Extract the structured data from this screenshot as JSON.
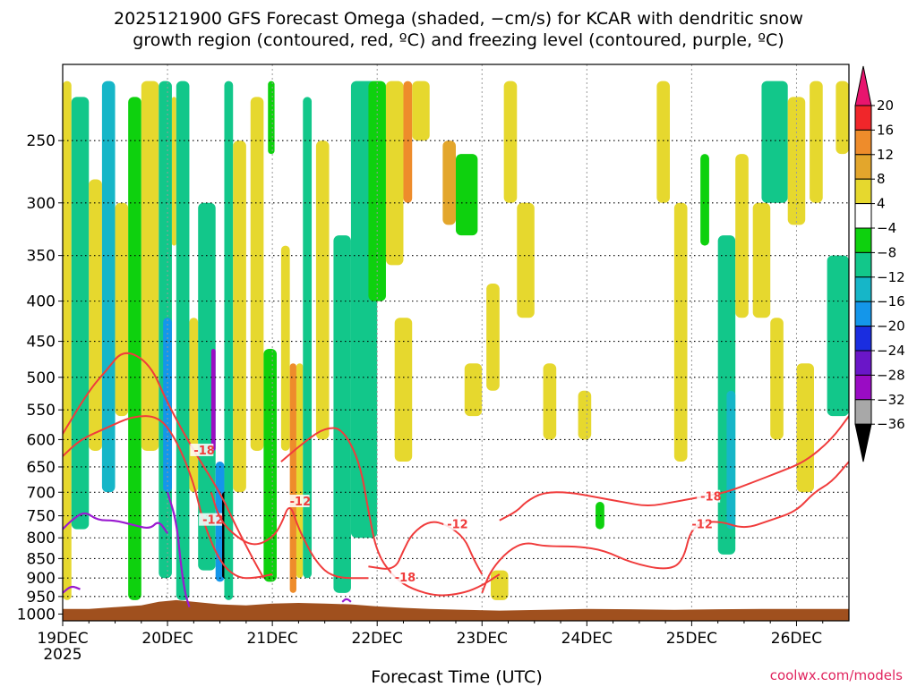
{
  "chart_data": {
    "type": "heatmap",
    "title_line1": "2025121900 GFS Forecast Omega (shaded, −cm/s) for KCAR with dendritic snow",
    "title_line2": "growth region (contoured, red, ºC) and freezing level (contoured, purple, ºC)",
    "xlabel": "Forecast Time (UTC)",
    "ylabel": "",
    "credit": "coolwx.com/models",
    "x_ticks": [
      "19DEC",
      "20DEC",
      "21DEC",
      "22DEC",
      "23DEC",
      "24DEC",
      "25DEC",
      "26DEC"
    ],
    "x_year": "2025",
    "x_range_hours": [
      0,
      180
    ],
    "y_ticks": [
      250,
      300,
      350,
      400,
      450,
      500,
      550,
      600,
      650,
      700,
      750,
      800,
      850,
      900,
      950,
      1000
    ],
    "y_range_hPa": [
      200,
      1020
    ],
    "y_scale": "log",
    "grid": true,
    "colorbar": {
      "labels": [
        "20",
        "16",
        "12",
        "8",
        "4",
        "−4",
        "−8",
        "−12",
        "−16",
        "−20",
        "−24",
        "−28",
        "−32",
        "−36"
      ],
      "bins": [
        {
          "from": 20,
          "to": 24,
          "color": "#e8156e"
        },
        {
          "from": 16,
          "to": 20,
          "color": "#f0262a"
        },
        {
          "from": 12,
          "to": 16,
          "color": "#ee8c2b"
        },
        {
          "from": 8,
          "to": 12,
          "color": "#e3a62c"
        },
        {
          "from": 4,
          "to": 8,
          "color": "#e6d82e"
        },
        {
          "from": -4,
          "to": 4,
          "color": "#ffffff"
        },
        {
          "from": -8,
          "to": -4,
          "color": "#0ed10e"
        },
        {
          "from": -12,
          "to": -8,
          "color": "#12c78a"
        },
        {
          "from": -16,
          "to": -12,
          "color": "#16b6c8"
        },
        {
          "from": -20,
          "to": -16,
          "color": "#1496ea"
        },
        {
          "from": -24,
          "to": -20,
          "color": "#1a2de0"
        },
        {
          "from": -28,
          "to": -24,
          "color": "#6a16c8"
        },
        {
          "from": -32,
          "to": -28,
          "color": "#9a0cc4"
        },
        {
          "from": -36,
          "to": -32,
          "color": "#a8a8a8"
        },
        {
          "from": -40,
          "to": -36,
          "color": "#000000"
        }
      ]
    },
    "shaded_regions": [
      {
        "t0": 0,
        "t1": 2,
        "p0": 210,
        "p1": 960,
        "value": 6
      },
      {
        "t0": 2,
        "t1": 6,
        "p0": 220,
        "p1": 780,
        "value": -10
      },
      {
        "t0": 6,
        "t1": 9,
        "p0": 280,
        "p1": 620,
        "value": 6
      },
      {
        "t0": 9,
        "t1": 12,
        "p0": 210,
        "p1": 700,
        "value": -14
      },
      {
        "t0": 12,
        "t1": 15,
        "p0": 300,
        "p1": 560,
        "value": 6
      },
      {
        "t0": 15,
        "t1": 18,
        "p0": 220,
        "p1": 960,
        "value": -8
      },
      {
        "t0": 18,
        "t1": 22,
        "p0": 210,
        "p1": 620,
        "value": 6
      },
      {
        "t0": 22,
        "t1": 25,
        "p0": 210,
        "p1": 900,
        "value": -10
      },
      {
        "t0": 23,
        "t1": 25,
        "p0": 420,
        "p1": 700,
        "value": -17
      },
      {
        "t0": 25,
        "t1": 26,
        "p0": 220,
        "p1": 340,
        "value": 6
      },
      {
        "t0": 26,
        "t1": 29,
        "p0": 210,
        "p1": 960,
        "value": -9
      },
      {
        "t0": 29,
        "t1": 31,
        "p0": 420,
        "p1": 700,
        "value": 6
      },
      {
        "t0": 31,
        "t1": 35,
        "p0": 300,
        "p1": 880,
        "value": -11
      },
      {
        "t0": 34,
        "t1": 35,
        "p0": 460,
        "p1": 620,
        "value": -30
      },
      {
        "t0": 35,
        "t1": 37,
        "p0": 640,
        "p1": 910,
        "value": -18
      },
      {
        "t0": 36.5,
        "t1": 37.5,
        "p0": 700,
        "p1": 900,
        "value": -37
      },
      {
        "t0": 37,
        "t1": 39,
        "p0": 210,
        "p1": 960,
        "value": -9
      },
      {
        "t0": 39,
        "t1": 42,
        "p0": 250,
        "p1": 700,
        "value": 6
      },
      {
        "t0": 43,
        "t1": 46,
        "p0": 220,
        "p1": 620,
        "value": 6
      },
      {
        "t0": 46,
        "t1": 49,
        "p0": 460,
        "p1": 910,
        "value": -8
      },
      {
        "t0": 47,
        "t1": 48.5,
        "p0": 210,
        "p1": 260,
        "value": -8
      },
      {
        "t0": 50,
        "t1": 52,
        "p0": 340,
        "p1": 620,
        "value": 6
      },
      {
        "t0": 52,
        "t1": 53.5,
        "p0": 480,
        "p1": 940,
        "value": 14
      },
      {
        "t0": 53.5,
        "t1": 55,
        "p0": 480,
        "p1": 900,
        "value": 6
      },
      {
        "t0": 55,
        "t1": 57,
        "p0": 220,
        "p1": 900,
        "value": -9
      },
      {
        "t0": 58,
        "t1": 61,
        "p0": 250,
        "p1": 600,
        "value": 6
      },
      {
        "t0": 62,
        "t1": 66,
        "p0": 330,
        "p1": 940,
        "value": -9
      },
      {
        "t0": 66,
        "t1": 72,
        "p0": 210,
        "p1": 800,
        "value": -12
      },
      {
        "t0": 70,
        "t1": 74,
        "p0": 210,
        "p1": 400,
        "value": -8
      },
      {
        "t0": 74,
        "t1": 78,
        "p0": 210,
        "p1": 360,
        "value": 6
      },
      {
        "t0": 76,
        "t1": 80,
        "p0": 420,
        "p1": 640,
        "value": 6
      },
      {
        "t0": 78,
        "t1": 80,
        "p0": 210,
        "p1": 300,
        "value": 14
      },
      {
        "t0": 80,
        "t1": 84,
        "p0": 210,
        "p1": 250,
        "value": 6
      },
      {
        "t0": 87,
        "t1": 90,
        "p0": 250,
        "p1": 320,
        "value": 10
      },
      {
        "t0": 90,
        "t1": 95,
        "p0": 260,
        "p1": 330,
        "value": -8
      },
      {
        "t0": 92,
        "t1": 96,
        "p0": 480,
        "p1": 560,
        "value": 6
      },
      {
        "t0": 97,
        "t1": 100,
        "p0": 380,
        "p1": 520,
        "value": 6
      },
      {
        "t0": 98,
        "t1": 102,
        "p0": 880,
        "p1": 960,
        "value": 6
      },
      {
        "t0": 101,
        "t1": 104,
        "p0": 210,
        "p1": 300,
        "value": 6
      },
      {
        "t0": 104,
        "t1": 108,
        "p0": 300,
        "p1": 420,
        "value": 6
      },
      {
        "t0": 110,
        "t1": 113,
        "p0": 480,
        "p1": 600,
        "value": 6
      },
      {
        "t0": 118,
        "t1": 121,
        "p0": 520,
        "p1": 600,
        "value": 6
      },
      {
        "t0": 122,
        "t1": 124,
        "p0": 720,
        "p1": 780,
        "value": -8
      },
      {
        "t0": 136,
        "t1": 139,
        "p0": 210,
        "p1": 300,
        "value": 6
      },
      {
        "t0": 140,
        "t1": 143,
        "p0": 300,
        "p1": 640,
        "value": 6
      },
      {
        "t0": 146,
        "t1": 148,
        "p0": 260,
        "p1": 340,
        "value": -8
      },
      {
        "t0": 150,
        "t1": 154,
        "p0": 330,
        "p1": 840,
        "value": -10
      },
      {
        "t0": 152,
        "t1": 154,
        "p0": 520,
        "p1": 780,
        "value": -15
      },
      {
        "t0": 154,
        "t1": 157,
        "p0": 260,
        "p1": 420,
        "value": 6
      },
      {
        "t0": 158,
        "t1": 162,
        "p0": 300,
        "p1": 420,
        "value": 6
      },
      {
        "t0": 160,
        "t1": 166,
        "p0": 210,
        "p1": 300,
        "value": -9
      },
      {
        "t0": 162,
        "t1": 165,
        "p0": 420,
        "p1": 600,
        "value": 6
      },
      {
        "t0": 166,
        "t1": 170,
        "p0": 220,
        "p1": 320,
        "value": 6
      },
      {
        "t0": 168,
        "t1": 172,
        "p0": 480,
        "p1": 700,
        "value": 6
      },
      {
        "t0": 171,
        "t1": 174,
        "p0": 210,
        "p1": 300,
        "value": 6
      },
      {
        "t0": 175,
        "t1": 180,
        "p0": 350,
        "p1": 560,
        "value": -9
      },
      {
        "t0": 177,
        "t1": 180,
        "p0": 210,
        "p1": 260,
        "value": 6
      }
    ],
    "dendritic_contours": [
      {
        "label": "-18",
        "points": [
          [
            0,
            590
          ],
          [
            6,
            520
          ],
          [
            10,
            490
          ],
          [
            14,
            460
          ],
          [
            20,
            480
          ],
          [
            24,
            540
          ],
          [
            30,
            620
          ],
          [
            36,
            700
          ],
          [
            40,
            780
          ],
          [
            44,
            860
          ],
          [
            46,
            900
          ]
        ]
      },
      {
        "label": "-12",
        "points": [
          [
            0,
            630
          ],
          [
            4,
            600
          ],
          [
            10,
            580
          ],
          [
            16,
            560
          ],
          [
            22,
            560
          ],
          [
            26,
            600
          ],
          [
            30,
            680
          ],
          [
            32,
            760
          ],
          [
            36,
            860
          ],
          [
            40,
            900
          ],
          [
            44,
            900
          ],
          [
            48,
            890
          ]
        ]
      },
      {
        "label": "-12",
        "points": [
          [
            34,
            700
          ],
          [
            36,
            760
          ],
          [
            40,
            800
          ],
          [
            44,
            820
          ],
          [
            48,
            800
          ],
          [
            50,
            770
          ],
          [
            52,
            720
          ],
          [
            54,
            780
          ],
          [
            58,
            860
          ],
          [
            62,
            900
          ],
          [
            70,
            900
          ]
        ]
      },
      {
        "label": "-18",
        "points": [
          [
            50,
            640
          ],
          [
            56,
            600
          ],
          [
            60,
            580
          ],
          [
            64,
            580
          ],
          [
            68,
            640
          ],
          [
            70,
            740
          ],
          [
            72,
            840
          ],
          [
            76,
            900
          ],
          [
            80,
            930
          ],
          [
            86,
            950
          ],
          [
            92,
            940
          ],
          [
            96,
            920
          ],
          [
            100,
            890
          ]
        ]
      },
      {
        "label": "-12",
        "points": [
          [
            70,
            870
          ],
          [
            76,
            880
          ],
          [
            78,
            830
          ],
          [
            80,
            790
          ],
          [
            84,
            760
          ],
          [
            88,
            770
          ],
          [
            92,
            800
          ],
          [
            94,
            850
          ],
          [
            96,
            890
          ]
        ]
      },
      {
        "label": "-18",
        "points": [
          [
            100,
            760
          ],
          [
            104,
            740
          ],
          [
            106,
            720
          ],
          [
            110,
            700
          ],
          [
            116,
            700
          ],
          [
            122,
            710
          ],
          [
            128,
            720
          ],
          [
            134,
            730
          ],
          [
            140,
            720
          ],
          [
            146,
            710
          ],
          [
            152,
            700
          ],
          [
            158,
            680
          ],
          [
            164,
            660
          ],
          [
            170,
            640
          ],
          [
            176,
            600
          ],
          [
            180,
            560
          ]
        ]
      },
      {
        "label": "-12",
        "points": [
          [
            96,
            940
          ],
          [
            98,
            880
          ],
          [
            102,
            830
          ],
          [
            106,
            810
          ],
          [
            110,
            820
          ],
          [
            118,
            820
          ],
          [
            124,
            830
          ],
          [
            130,
            860
          ],
          [
            138,
            880
          ],
          [
            142,
            860
          ],
          [
            144,
            770
          ],
          [
            150,
            760
          ],
          [
            156,
            780
          ],
          [
            162,
            760
          ],
          [
            168,
            740
          ],
          [
            172,
            700
          ],
          [
            176,
            680
          ],
          [
            180,
            640
          ]
        ]
      }
    ],
    "freezing_contours": [
      {
        "label": "0",
        "points": [
          [
            0,
            780
          ],
          [
            2,
            760
          ],
          [
            5,
            740
          ],
          [
            8,
            760
          ],
          [
            12,
            760
          ],
          [
            16,
            770
          ],
          [
            20,
            780
          ],
          [
            22,
            760
          ],
          [
            24,
            790
          ]
        ]
      },
      {
        "label": "0",
        "points": [
          [
            24,
            700
          ],
          [
            26,
            760
          ],
          [
            27,
            860
          ],
          [
            28,
            940
          ],
          [
            29,
            980
          ]
        ]
      },
      {
        "label": "0",
        "points": [
          [
            0,
            940
          ],
          [
            2,
            920
          ],
          [
            4,
            930
          ]
        ]
      },
      {
        "label": "0",
        "points": [
          [
            64,
            965
          ],
          [
            65,
            955
          ],
          [
            66,
            965
          ]
        ]
      }
    ],
    "terrain": [
      [
        0,
        985
      ],
      [
        6,
        985
      ],
      [
        12,
        980
      ],
      [
        18,
        975
      ],
      [
        22,
        965
      ],
      [
        26,
        960
      ],
      [
        30,
        965
      ],
      [
        36,
        972
      ],
      [
        42,
        975
      ],
      [
        48,
        970
      ],
      [
        54,
        968
      ],
      [
        60,
        970
      ],
      [
        66,
        972
      ],
      [
        72,
        978
      ],
      [
        78,
        982
      ],
      [
        84,
        985
      ],
      [
        92,
        988
      ],
      [
        100,
        990
      ],
      [
        110,
        988
      ],
      [
        120,
        985
      ],
      [
        130,
        986
      ],
      [
        140,
        988
      ],
      [
        150,
        986
      ],
      [
        160,
        985
      ],
      [
        170,
        985
      ],
      [
        180,
        985
      ]
    ]
  }
}
